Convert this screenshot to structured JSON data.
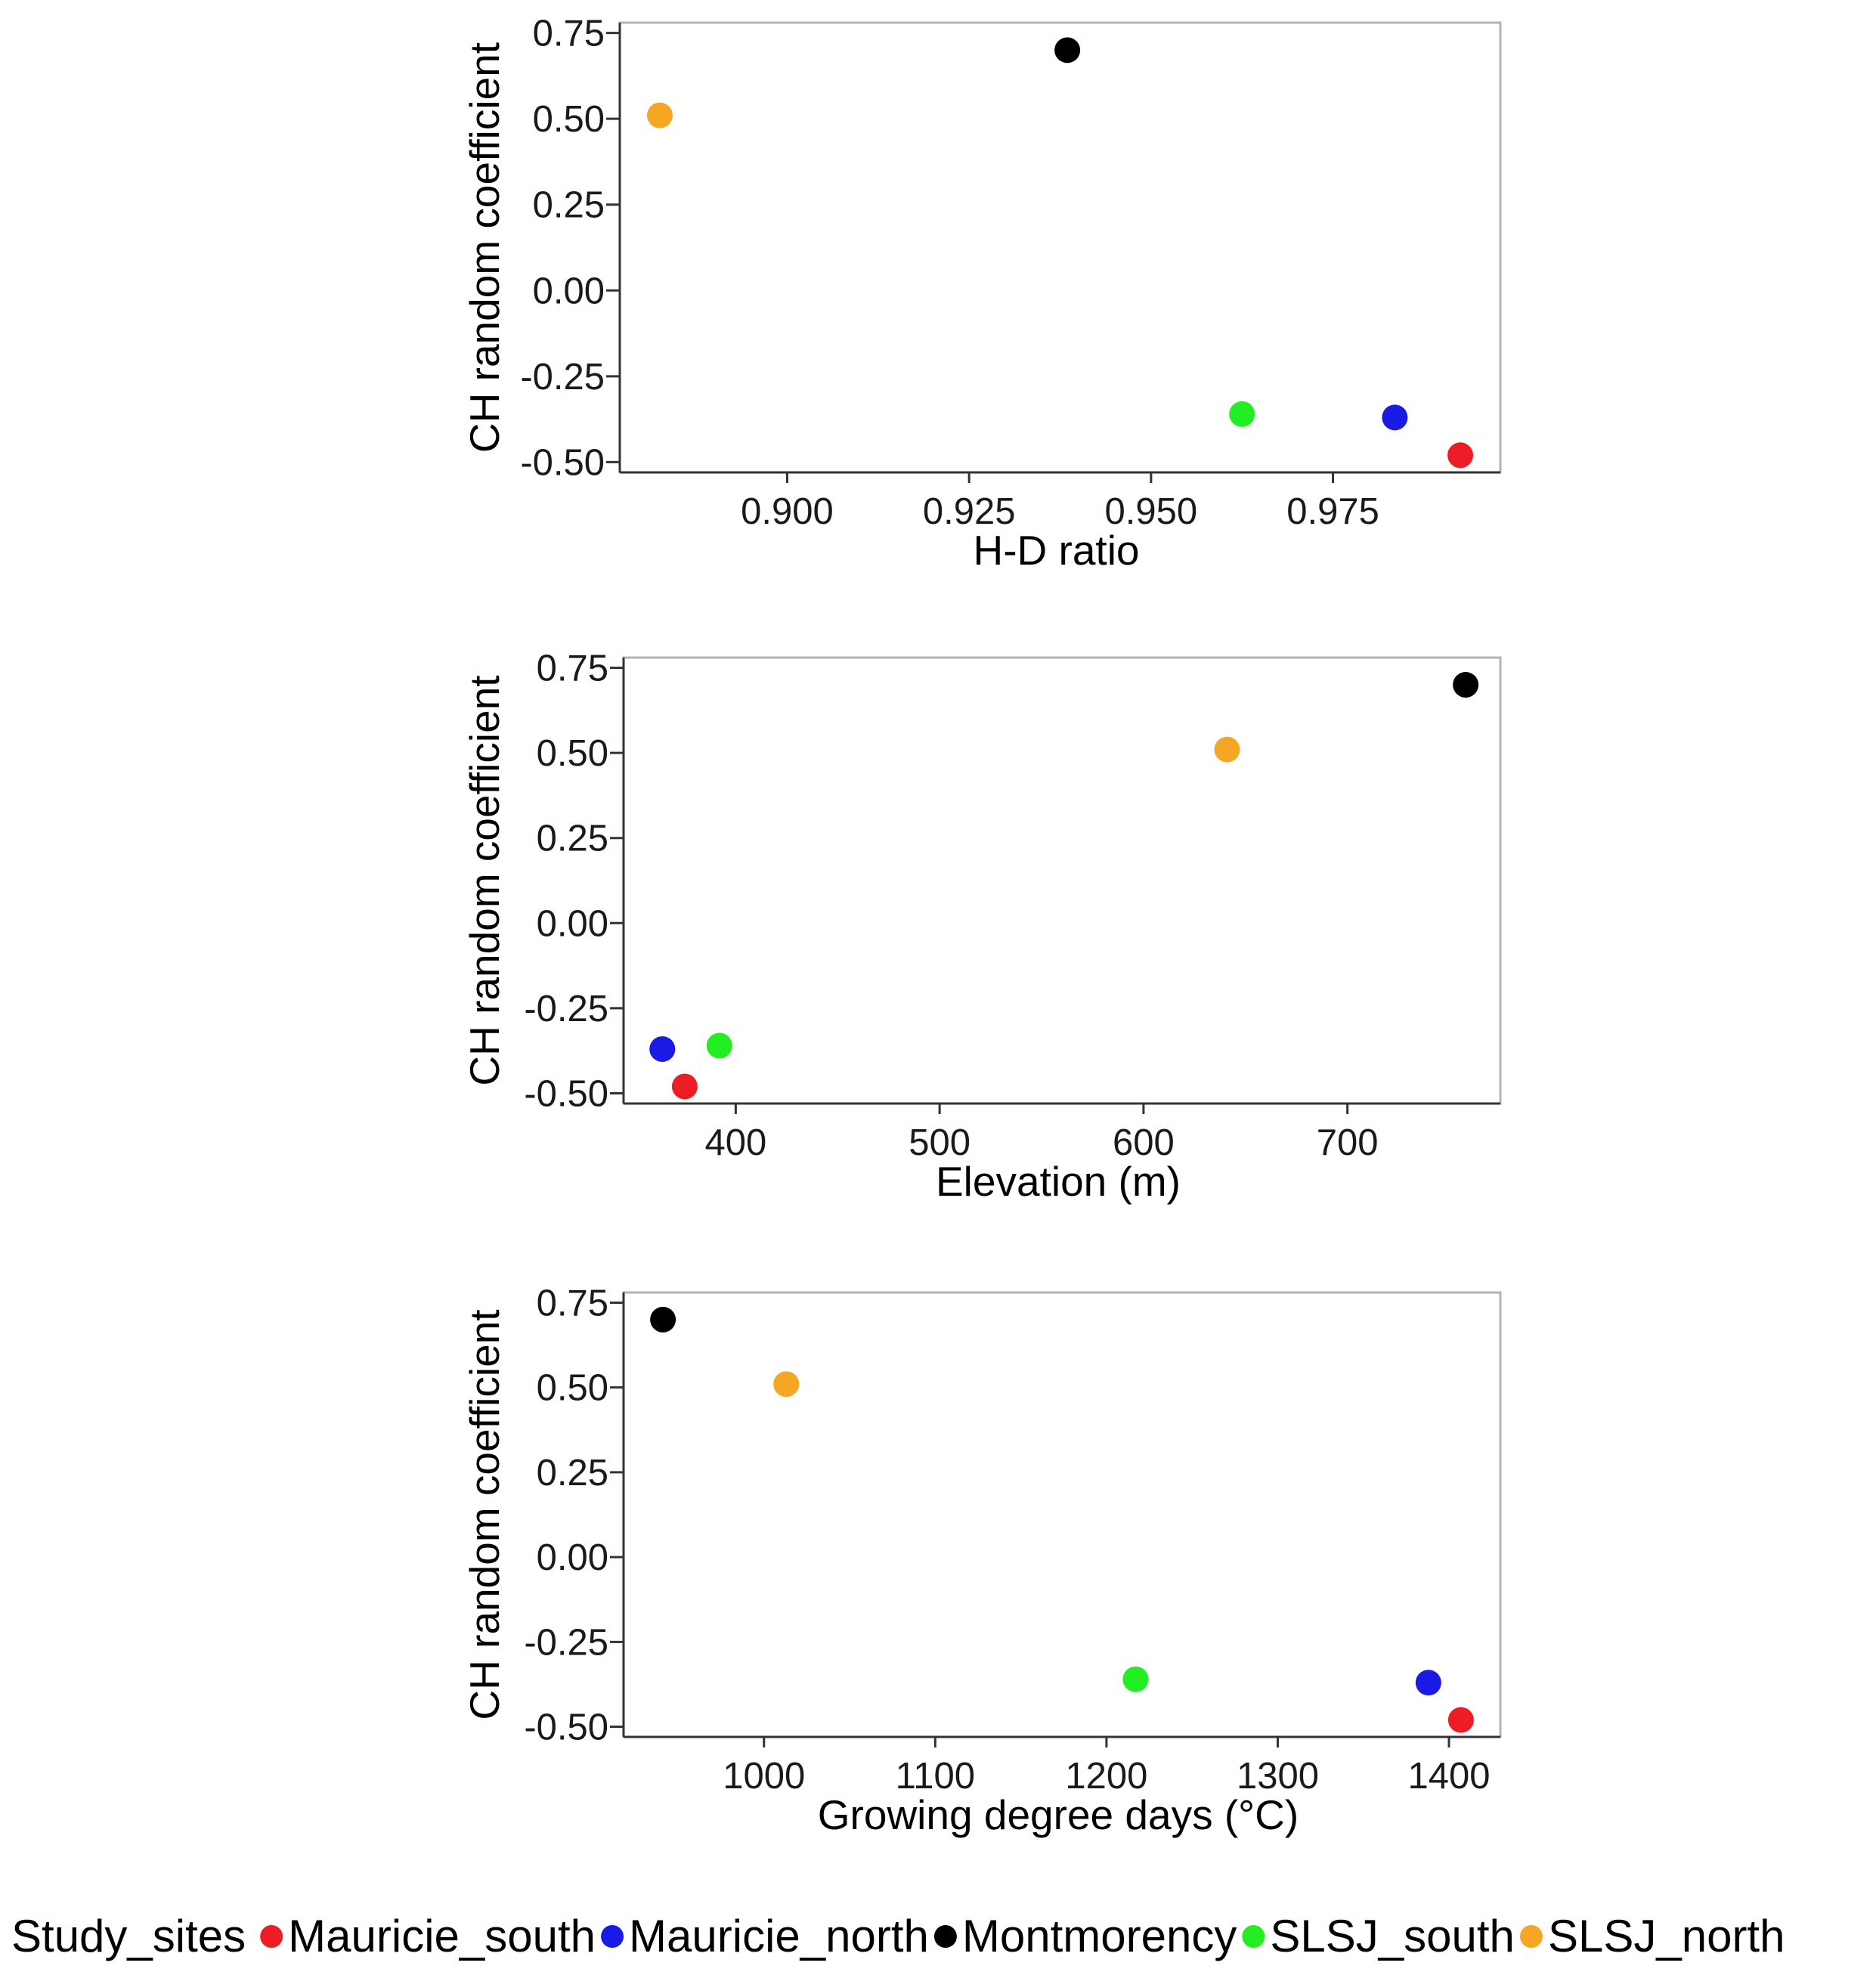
{
  "chart_data": [
    {
      "type": "scatter",
      "xlabel": "H-D ratio",
      "ylabel": "CH random coefficient",
      "xlim": [
        0.877,
        0.998
      ],
      "ylim": [
        -0.53,
        0.78
      ],
      "xticks": [
        0.9,
        0.925,
        0.95,
        0.975
      ],
      "xtick_labels": [
        "0.900",
        "0.925",
        "0.950",
        "0.975"
      ],
      "yticks": [
        0.75,
        0.5,
        0.25,
        0.0,
        -0.25,
        -0.5
      ],
      "ytick_labels": [
        "0.75",
        "0.50",
        "0.25",
        "0.00",
        "-0.25",
        "-0.50"
      ],
      "points": [
        {
          "site": "SLSJ_north",
          "x": 0.8825,
          "y": 0.51
        },
        {
          "site": "Montmorency",
          "x": 0.9385,
          "y": 0.7
        },
        {
          "site": "SLSJ_south",
          "x": 0.9625,
          "y": -0.36
        },
        {
          "site": "Mauricie_north",
          "x": 0.9835,
          "y": -0.37
        },
        {
          "site": "Mauricie_south",
          "x": 0.9925,
          "y": -0.48
        }
      ]
    },
    {
      "type": "scatter",
      "xlabel": "Elevation (m)",
      "ylabel": "CH random coefficient",
      "xlim": [
        345,
        775
      ],
      "ylim": [
        -0.53,
        0.78
      ],
      "xticks": [
        400,
        500,
        600,
        700
      ],
      "xtick_labels": [
        "400",
        "500",
        "600",
        "700"
      ],
      "yticks": [
        0.75,
        0.5,
        0.25,
        0.0,
        -0.25,
        -0.5
      ],
      "ytick_labels": [
        "0.75",
        "0.50",
        "0.25",
        "0.00",
        "-0.25",
        "-0.50"
      ],
      "points": [
        {
          "site": "Mauricie_north",
          "x": 364,
          "y": -0.37
        },
        {
          "site": "Mauricie_south",
          "x": 375,
          "y": -0.48
        },
        {
          "site": "SLSJ_south",
          "x": 392,
          "y": -0.36
        },
        {
          "site": "SLSJ_north",
          "x": 641,
          "y": 0.51
        },
        {
          "site": "Montmorency",
          "x": 758,
          "y": 0.7
        }
      ]
    },
    {
      "type": "scatter",
      "xlabel": "Growing degree days (°C)",
      "ylabel": "CH random coefficient",
      "xlim": [
        918,
        1430
      ],
      "ylim": [
        -0.53,
        0.78
      ],
      "xticks": [
        1000,
        1100,
        1200,
        1300,
        1400
      ],
      "xtick_labels": [
        "1000",
        "1100",
        "1200",
        "1300",
        "1400"
      ],
      "yticks": [
        0.75,
        0.5,
        0.25,
        0.0,
        -0.25,
        -0.5
      ],
      "ytick_labels": [
        "0.75",
        "0.50",
        "0.25",
        "0.00",
        "-0.25",
        "-0.50"
      ],
      "points": [
        {
          "site": "Montmorency",
          "x": 941,
          "y": 0.7
        },
        {
          "site": "SLSJ_north",
          "x": 1013,
          "y": 0.51
        },
        {
          "site": "SLSJ_south",
          "x": 1217,
          "y": -0.36
        },
        {
          "site": "Mauricie_north",
          "x": 1388,
          "y": -0.37
        },
        {
          "site": "Mauricie_south",
          "x": 1407,
          "y": -0.48
        }
      ]
    }
  ],
  "legend": {
    "title": "Study_sites",
    "placement": "bottom",
    "entries": [
      {
        "label": "Mauricie_south",
        "color": "#ee1c24"
      },
      {
        "label": "Mauricie_north",
        "color": "#1a1ae6"
      },
      {
        "label": "Montmorency",
        "color": "#000000"
      },
      {
        "label": "SLSJ_south",
        "color": "#22ee22"
      },
      {
        "label": "SLSJ_north",
        "color": "#f5a623"
      }
    ]
  }
}
